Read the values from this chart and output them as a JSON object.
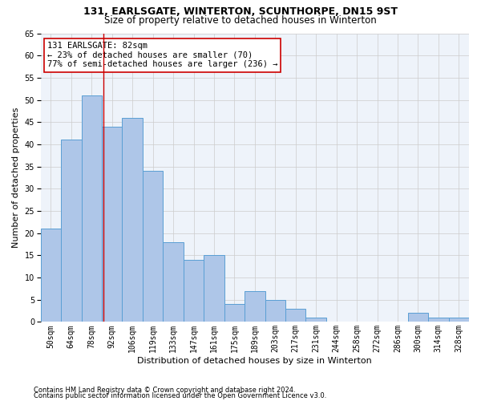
{
  "title1": "131, EARLSGATE, WINTERTON, SCUNTHORPE, DN15 9ST",
  "title2": "Size of property relative to detached houses in Winterton",
  "xlabel": "Distribution of detached houses by size in Winterton",
  "ylabel": "Number of detached properties",
  "bar_labels": [
    "50sqm",
    "64sqm",
    "78sqm",
    "92sqm",
    "106sqm",
    "119sqm",
    "133sqm",
    "147sqm",
    "161sqm",
    "175sqm",
    "189sqm",
    "203sqm",
    "217sqm",
    "231sqm",
    "244sqm",
    "258sqm",
    "272sqm",
    "286sqm",
    "300sqm",
    "314sqm",
    "328sqm"
  ],
  "bar_values": [
    21,
    41,
    51,
    44,
    46,
    34,
    18,
    14,
    15,
    4,
    7,
    5,
    3,
    1,
    0,
    0,
    0,
    0,
    2,
    1,
    1
  ],
  "bar_color_normal": "#aec6e8",
  "bar_color_edge": "#5a9fd4",
  "bar_background": "#eef3fa",
  "annotation_line1": "131 EARLSGATE: 82sqm",
  "annotation_line2": "← 23% of detached houses are smaller (70)",
  "annotation_line3": "77% of semi-detached houses are larger (236) →",
  "vline_x_index": 2.57,
  "ylim": [
    0,
    65
  ],
  "yticks": [
    0,
    5,
    10,
    15,
    20,
    25,
    30,
    35,
    40,
    45,
    50,
    55,
    60,
    65
  ],
  "footer1": "Contains HM Land Registry data © Crown copyright and database right 2024.",
  "footer2": "Contains public sector information licensed under the Open Government Licence v3.0.",
  "grid_color": "#cccccc",
  "vline_color": "#cc0000",
  "annotation_box_color": "#cc0000",
  "title1_fontsize": 9,
  "title2_fontsize": 8.5,
  "axis_label_fontsize": 8,
  "tick_fontsize": 7,
  "annotation_fontsize": 7.5,
  "footer_fontsize": 6
}
